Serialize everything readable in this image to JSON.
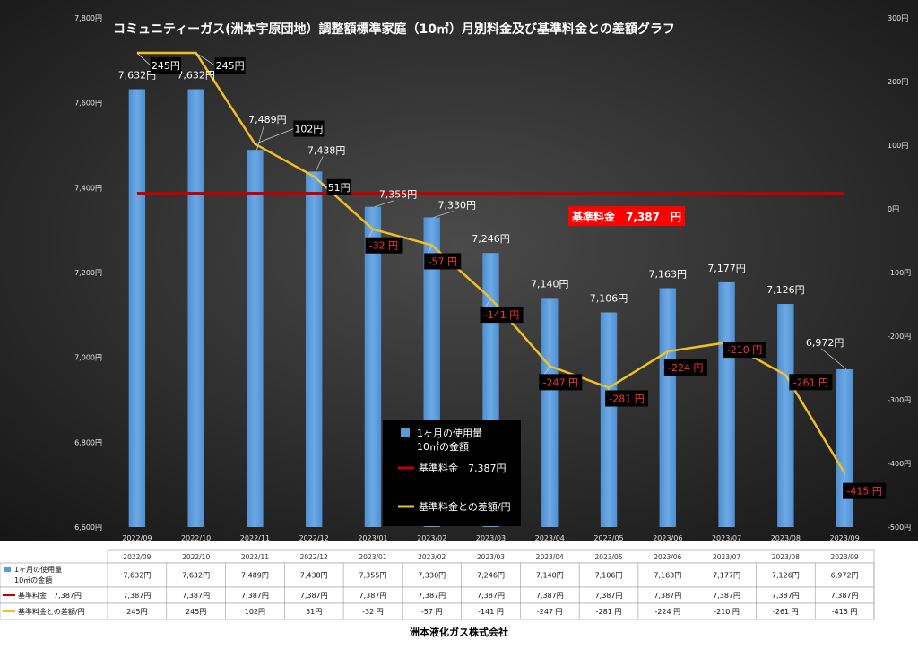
{
  "chart_data": {
    "type": "bar",
    "title": "コミュニティーガス(洲本宇原団地）調整額標準家庭（10㎥）月別料金及び基準料金との差額グラフ",
    "categories": [
      "2022/09",
      "2022/10",
      "2022/11",
      "2022/12",
      "2023/01",
      "2023/02",
      "2023/03",
      "2023/04",
      "2023/05",
      "2023/06",
      "2023/07",
      "2023/08",
      "2023/09"
    ],
    "ylim": [
      6600,
      7800
    ],
    "y2lim": [
      -500,
      300
    ],
    "y_ticks": [
      "6,600円",
      "6,800円",
      "7,000円",
      "7,200円",
      "7,400円",
      "7,600円",
      "7,800円"
    ],
    "y2_ticks": [
      "300円",
      "200円",
      "100円",
      "0円",
      "-100円",
      "-200円",
      "-300円",
      "-400円",
      "-500円"
    ],
    "series": [
      {
        "name": "1ヶ月の使用量 10㎥の金額",
        "kind": "bar",
        "axis": "left",
        "color": "#5b9bd5",
        "values": [
          7632,
          7632,
          7489,
          7438,
          7355,
          7330,
          7246,
          7140,
          7106,
          7163,
          7177,
          7126,
          6972
        ],
        "labels": [
          "7,632円",
          "7,632円",
          "7,489円",
          "7,438円",
          "7,355円",
          "7,330円",
          "7,246円",
          "7,140円",
          "7,106円",
          "7,163円",
          "7,177円",
          "7,126円",
          "6,972円"
        ]
      },
      {
        "name": "基準料金　7,387円",
        "kind": "line",
        "axis": "left",
        "color": "#c00000",
        "values": [
          7387,
          7387,
          7387,
          7387,
          7387,
          7387,
          7387,
          7387,
          7387,
          7387,
          7387,
          7387,
          7387
        ],
        "labels": [
          "7,387円",
          "7,387円",
          "7,387円",
          "7,387円",
          "7,387円",
          "7,387円",
          "7,387円",
          "7,387円",
          "7,387円",
          "7,387円",
          "7,387円",
          "7,387円",
          "7,387円"
        ]
      },
      {
        "name": "基準料金との差額/円",
        "kind": "line",
        "axis": "right",
        "color": "#f0c020",
        "values": [
          245,
          245,
          102,
          51,
          -32,
          -57,
          -141,
          -247,
          -281,
          -224,
          -210,
          -261,
          -415
        ],
        "labels": [
          "245円",
          "245円",
          "102円",
          "51円",
          "-32 円",
          "-57 円",
          "-141 円",
          "-247 円",
          "-281 円",
          "-224 円",
          "-210 円",
          "-261 円",
          "-415 円"
        ],
        "chart_labels": [
          "245円",
          "245円",
          "102円",
          "51円",
          "-32 円",
          "-57 円",
          "-141 円",
          "-247 円",
          "-281 円",
          "-224 円",
          "-210 円",
          "-261 円",
          "-415 円"
        ]
      }
    ],
    "annotation": "基準料金　7,387　円",
    "legend": {
      "placement": "bottom-center",
      "entries": [
        "1ヶ月の使用量",
        "10㎥の金額",
        "基準料金　7,387円",
        "基準料金との差額/円"
      ]
    },
    "table": {
      "row_labels": [
        "1ヶ月の使用量",
        "10㎥の金額",
        "基準料金　7,387円",
        "基準料金との差額/円"
      ]
    },
    "grid": false
  },
  "footer": {
    "company": "洲本液化ガス株式会社"
  }
}
